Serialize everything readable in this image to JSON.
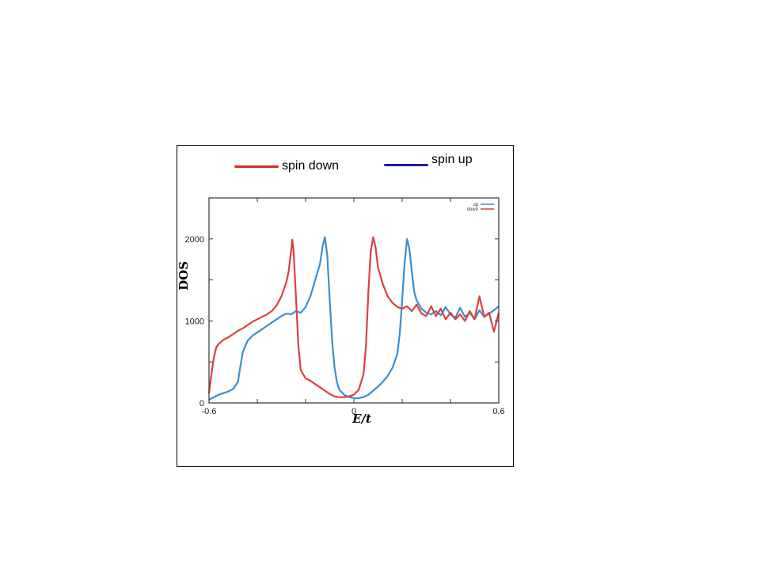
{
  "outer_legend": {
    "spin_down_label": "spin down",
    "spin_up_label": "spin up",
    "spin_down_color": "#d62b2b",
    "spin_up_color": "#1c1ca8"
  },
  "chart_data": {
    "type": "line",
    "xlabel": "E/t",
    "ylabel": "DOS",
    "xlim": [
      -0.6,
      0.6
    ],
    "ylim": [
      0,
      2500
    ],
    "x_ticks": [
      -0.6,
      0,
      0.6
    ],
    "y_ticks": [
      0,
      1000,
      2000
    ],
    "x_tick_labels": [
      "-0.6",
      "0",
      "0.6"
    ],
    "y_tick_labels": [
      "0",
      "1000",
      "2000"
    ],
    "grid": false,
    "legend_position": "top-right",
    "series": [
      {
        "name": "up",
        "color": "#3a8fd0",
        "points": [
          [
            -0.6,
            40
          ],
          [
            -0.56,
            100
          ],
          [
            -0.52,
            140
          ],
          [
            -0.5,
            170
          ],
          [
            -0.48,
            260
          ],
          [
            -0.47,
            450
          ],
          [
            -0.46,
            620
          ],
          [
            -0.44,
            760
          ],
          [
            -0.42,
            820
          ],
          [
            -0.4,
            860
          ],
          [
            -0.38,
            900
          ],
          [
            -0.36,
            940
          ],
          [
            -0.34,
            980
          ],
          [
            -0.32,
            1020
          ],
          [
            -0.3,
            1060
          ],
          [
            -0.28,
            1090
          ],
          [
            -0.26,
            1080
          ],
          [
            -0.24,
            1120
          ],
          [
            -0.22,
            1100
          ],
          [
            -0.2,
            1170
          ],
          [
            -0.18,
            1300
          ],
          [
            -0.16,
            1500
          ],
          [
            -0.14,
            1700
          ],
          [
            -0.13,
            1900
          ],
          [
            -0.12,
            2020
          ],
          [
            -0.11,
            1800
          ],
          [
            -0.1,
            1250
          ],
          [
            -0.09,
            750
          ],
          [
            -0.08,
            430
          ],
          [
            -0.07,
            250
          ],
          [
            -0.06,
            160
          ],
          [
            -0.04,
            100
          ],
          [
            -0.02,
            70
          ],
          [
            0,
            60
          ],
          [
            0.02,
            60
          ],
          [
            0.04,
            70
          ],
          [
            0.06,
            100
          ],
          [
            0.08,
            150
          ],
          [
            0.1,
            200
          ],
          [
            0.12,
            260
          ],
          [
            0.14,
            330
          ],
          [
            0.16,
            430
          ],
          [
            0.18,
            600
          ],
          [
            0.19,
            850
          ],
          [
            0.2,
            1250
          ],
          [
            0.21,
            1700
          ],
          [
            0.22,
            2000
          ],
          [
            0.23,
            1880
          ],
          [
            0.24,
            1600
          ],
          [
            0.25,
            1350
          ],
          [
            0.26,
            1250
          ],
          [
            0.28,
            1150
          ],
          [
            0.3,
            1100
          ],
          [
            0.32,
            1080
          ],
          [
            0.34,
            1120
          ],
          [
            0.36,
            1070
          ],
          [
            0.38,
            1170
          ],
          [
            0.4,
            1080
          ],
          [
            0.42,
            1040
          ],
          [
            0.44,
            1160
          ],
          [
            0.46,
            1050
          ],
          [
            0.48,
            1100
          ],
          [
            0.5,
            1020
          ],
          [
            0.52,
            1130
          ],
          [
            0.54,
            1050
          ],
          [
            0.56,
            1090
          ],
          [
            0.58,
            1130
          ],
          [
            0.6,
            1180
          ]
        ]
      },
      {
        "name": "down",
        "color": "#d94040",
        "points": [
          [
            -0.6,
            120
          ],
          [
            -0.59,
            350
          ],
          [
            -0.58,
            550
          ],
          [
            -0.57,
            680
          ],
          [
            -0.56,
            720
          ],
          [
            -0.54,
            770
          ],
          [
            -0.52,
            800
          ],
          [
            -0.5,
            840
          ],
          [
            -0.48,
            880
          ],
          [
            -0.46,
            910
          ],
          [
            -0.44,
            950
          ],
          [
            -0.42,
            990
          ],
          [
            -0.4,
            1020
          ],
          [
            -0.38,
            1050
          ],
          [
            -0.36,
            1080
          ],
          [
            -0.34,
            1120
          ],
          [
            -0.32,
            1190
          ],
          [
            -0.3,
            1300
          ],
          [
            -0.28,
            1470
          ],
          [
            -0.27,
            1600
          ],
          [
            -0.26,
            1850
          ],
          [
            -0.255,
            1990
          ],
          [
            -0.25,
            1850
          ],
          [
            -0.24,
            1300
          ],
          [
            -0.23,
            700
          ],
          [
            -0.22,
            400
          ],
          [
            -0.2,
            300
          ],
          [
            -0.18,
            270
          ],
          [
            -0.16,
            230
          ],
          [
            -0.14,
            190
          ],
          [
            -0.12,
            150
          ],
          [
            -0.1,
            110
          ],
          [
            -0.08,
            80
          ],
          [
            -0.06,
            70
          ],
          [
            -0.04,
            70
          ],
          [
            -0.02,
            80
          ],
          [
            0,
            100
          ],
          [
            0.02,
            160
          ],
          [
            0.04,
            350
          ],
          [
            0.05,
            700
          ],
          [
            0.06,
            1350
          ],
          [
            0.07,
            1850
          ],
          [
            0.08,
            2020
          ],
          [
            0.09,
            1900
          ],
          [
            0.1,
            1650
          ],
          [
            0.12,
            1450
          ],
          [
            0.14,
            1300
          ],
          [
            0.16,
            1220
          ],
          [
            0.18,
            1170
          ],
          [
            0.2,
            1150
          ],
          [
            0.22,
            1180
          ],
          [
            0.24,
            1120
          ],
          [
            0.26,
            1200
          ],
          [
            0.28,
            1090
          ],
          [
            0.3,
            1060
          ],
          [
            0.32,
            1180
          ],
          [
            0.34,
            1060
          ],
          [
            0.36,
            1150
          ],
          [
            0.38,
            1020
          ],
          [
            0.4,
            1100
          ],
          [
            0.42,
            1020
          ],
          [
            0.44,
            1080
          ],
          [
            0.46,
            1000
          ],
          [
            0.48,
            1120
          ],
          [
            0.5,
            1020
          ],
          [
            0.52,
            1300
          ],
          [
            0.54,
            1050
          ],
          [
            0.56,
            1100
          ],
          [
            0.58,
            870
          ],
          [
            0.6,
            1100
          ]
        ]
      }
    ]
  }
}
